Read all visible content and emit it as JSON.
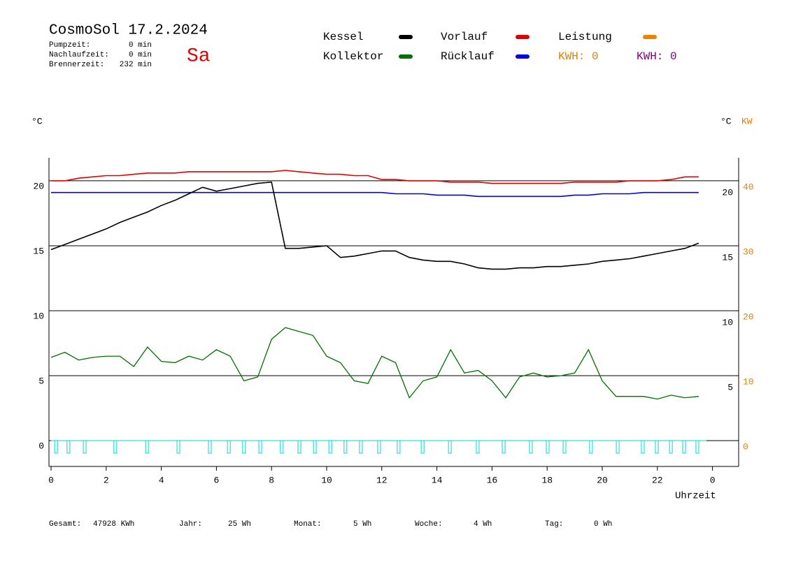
{
  "chart_data": {
    "type": "line",
    "title": "CosmoSol 17.2.2024",
    "day": "Sa",
    "info": [
      {
        "label": "Pumpzeit:",
        "value": "0 min"
      },
      {
        "label": "Nachlaufzeit:",
        "value": "0 min"
      },
      {
        "label": "Brennerzeit:",
        "value": "232 min"
      }
    ],
    "legend": [
      {
        "name": "Kessel",
        "color": "#000000"
      },
      {
        "name": "Vorlauf",
        "color": "#e00000"
      },
      {
        "name": "Leistung",
        "color": "#f08000"
      },
      {
        "name": "Kollektor",
        "color": "#007000"
      },
      {
        "name": "Rücklauf",
        "color": "#0000e0"
      }
    ],
    "kwh": [
      {
        "text": "KWH: 0",
        "color": "#e08000"
      },
      {
        "text": "KWH: 0",
        "color": "#800080"
      }
    ],
    "y_label": "°C",
    "y2_label": "°C",
    "y2_unit": "KW",
    "x_label": "Uhrzeit",
    "x": [
      0,
      0.5,
      1,
      1.5,
      2,
      2.5,
      3,
      3.5,
      4,
      4.5,
      5,
      5.5,
      6,
      6.5,
      7,
      7.5,
      8,
      8.5,
      9,
      9.5,
      10,
      10.5,
      11,
      11.5,
      12,
      12.5,
      13,
      13.5,
      14,
      14.5,
      15,
      15.5,
      16,
      16.5,
      17,
      17.5,
      18,
      18.5,
      19,
      19.5,
      20,
      20.5,
      21,
      21.5,
      22,
      22.5,
      23,
      23.5
    ],
    "series": [
      {
        "name": "Vorlauf",
        "color": "#e00000",
        "values": [
          20.0,
          20.0,
          20.2,
          20.3,
          20.4,
          20.4,
          20.5,
          20.6,
          20.6,
          20.6,
          20.7,
          20.7,
          20.7,
          20.7,
          20.7,
          20.7,
          20.7,
          20.8,
          20.7,
          20.6,
          20.5,
          20.5,
          20.4,
          20.4,
          20.1,
          20.1,
          20.0,
          20.0,
          20.0,
          19.9,
          19.9,
          19.9,
          19.8,
          19.8,
          19.8,
          19.8,
          19.8,
          19.8,
          19.9,
          19.9,
          19.9,
          19.9,
          20.0,
          20.0,
          20.0,
          20.1,
          20.3,
          20.3
        ]
      },
      {
        "name": "Rücklauf",
        "color": "#0000e0",
        "values": [
          19.1,
          19.1,
          19.1,
          19.1,
          19.1,
          19.1,
          19.1,
          19.1,
          19.1,
          19.1,
          19.1,
          19.1,
          19.1,
          19.1,
          19.1,
          19.1,
          19.1,
          19.1,
          19.1,
          19.1,
          19.1,
          19.1,
          19.1,
          19.1,
          19.1,
          19.0,
          19.0,
          19.0,
          18.9,
          18.9,
          18.9,
          18.8,
          18.8,
          18.8,
          18.8,
          18.8,
          18.8,
          18.8,
          18.9,
          18.9,
          19.0,
          19.0,
          19.0,
          19.1,
          19.1,
          19.1,
          19.1,
          19.1
        ]
      },
      {
        "name": "Kessel",
        "color": "#000000",
        "values": [
          14.7,
          15.1,
          15.5,
          15.9,
          16.3,
          16.8,
          17.2,
          17.6,
          18.1,
          18.5,
          19.0,
          19.5,
          19.2,
          19.4,
          19.6,
          19.8,
          19.9,
          14.8,
          14.8,
          14.9,
          15.0,
          14.1,
          14.2,
          14.4,
          14.6,
          14.6,
          14.1,
          13.9,
          13.8,
          13.8,
          13.6,
          13.3,
          13.2,
          13.2,
          13.3,
          13.3,
          13.4,
          13.4,
          13.5,
          13.6,
          13.8,
          13.9,
          14.0,
          14.2,
          14.4,
          14.6,
          14.8,
          15.2
        ]
      },
      {
        "name": "Kollektor",
        "color": "#007000",
        "values": [
          6.4,
          6.8,
          6.2,
          6.4,
          6.5,
          6.5,
          5.7,
          7.2,
          6.1,
          6.0,
          6.5,
          6.2,
          7.0,
          6.5,
          4.6,
          4.9,
          7.8,
          8.7,
          8.4,
          8.1,
          6.5,
          6.0,
          4.6,
          4.4,
          6.5,
          6.0,
          3.3,
          4.6,
          4.9,
          7.0,
          5.2,
          5.4,
          4.6,
          3.3,
          4.9,
          5.2,
          4.9,
          5.0,
          5.2,
          7.0,
          4.6,
          3.4,
          3.4,
          3.4,
          3.2,
          3.5,
          3.3,
          3.4
        ]
      }
    ],
    "pulses": {
      "color": "#00d8d8",
      "x": [
        0.13,
        0.58,
        1.17,
        2.28,
        3.43,
        4.57,
        5.71,
        6.4,
        6.95,
        7.54,
        8.32,
        8.96,
        9.52,
        10.08,
        10.63,
        11.19,
        11.85,
        12.56,
        13.43,
        14.42,
        15.43,
        16.37,
        17.36,
        17.97,
        18.58,
        19.54,
        20.51,
        21.42,
        21.93,
        22.44,
        22.92,
        23.4
      ]
    },
    "xlim": [
      0,
      24
    ],
    "xticks": [
      0,
      2,
      4,
      6,
      8,
      10,
      12,
      14,
      16,
      18,
      20,
      22,
      {
        "value": 24,
        "label": "0"
      }
    ],
    "ylim": [
      -1.99,
      21.77
    ],
    "yticks": [
      0,
      5,
      10,
      15,
      20
    ],
    "yticks_right": [
      5,
      10,
      15,
      20
    ],
    "y2lim": [
      -3.98,
      43.54
    ],
    "y2ticks": [
      0,
      10,
      20,
      30,
      40
    ],
    "y2_color": "#e08000",
    "grid": true,
    "footer": [
      {
        "label": "Gesamt:",
        "value": "47928 KWh"
      },
      {
        "label": "Jahr:",
        "value": "25 Wh"
      },
      {
        "label": "Monat:",
        "value": "5 Wh"
      },
      {
        "label": "Woche:",
        "value": "4 Wh"
      },
      {
        "label": "Tag:",
        "value": "0 Wh"
      }
    ]
  }
}
